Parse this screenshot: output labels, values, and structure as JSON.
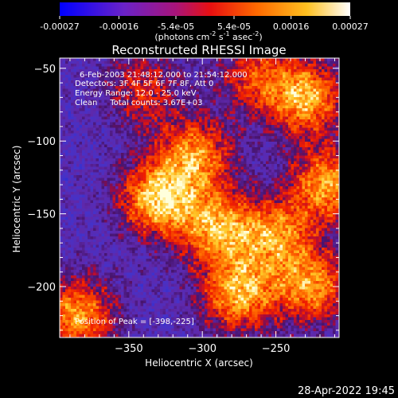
{
  "colorbar": {
    "tick_labels": [
      "-0.00027",
      "-0.00016",
      "-5.4e-05",
      "5.4e-05",
      "0.00016",
      "0.00027"
    ],
    "tick_values": [
      -0.00027,
      -0.00016,
      -5.4e-05,
      5.4e-05,
      0.00016,
      0.00027
    ],
    "range": [
      -0.00027,
      0.00027
    ],
    "units_main": "(photons cm",
    "units_exp1": "-2",
    "units_mid": " s",
    "units_exp2": "-1",
    "units_end": " asec",
    "units_exp3": "-2",
    "units_close": ")",
    "colors": [
      "#0000ff",
      "#7a1fb8",
      "#c0105a",
      "#ff3000",
      "#ff9a00",
      "#ffe060",
      "#ffffff"
    ]
  },
  "chart_data": {
    "type": "heatmap",
    "title": "Reconstructed RHESSI Image",
    "xlabel": "Heliocentric X (arcsec)",
    "ylabel": "Heliocentric Y (arcsec)",
    "xlim": [
      -397,
      -207
    ],
    "ylim": [
      -235,
      -43
    ],
    "xticks": [
      -350,
      -300,
      -250
    ],
    "xtick_labels": [
      "−350",
      "−300",
      "−250"
    ],
    "yticks": [
      -200,
      -150,
      -100,
      -50
    ],
    "ytick_labels": [
      "−200",
      "−150",
      "−100",
      "−50"
    ],
    "annotations": {
      "time": "6-Feb-2003 21:48:12.000 to 21:54:12.000",
      "detectors": "Detectors: 3F 4F 5F 6F 7F 8F, Att 0",
      "energy": "Energy Range: 12.0 - 25.0 keV",
      "clean": "Clean     Total counts: 3.67E+03",
      "peak": "Position of Peak = [-398,-225]"
    },
    "peak_position": [
      -398,
      -225
    ],
    "hot_regions": [
      {
        "x": -330,
        "y": -140,
        "intensity": 1.0
      },
      {
        "x": -305,
        "y": -110,
        "intensity": 0.8
      },
      {
        "x": -290,
        "y": -160,
        "intensity": 0.85
      },
      {
        "x": -230,
        "y": -70,
        "intensity": 0.9
      },
      {
        "x": -215,
        "y": -130,
        "intensity": 0.85
      },
      {
        "x": -225,
        "y": -200,
        "intensity": 0.8
      },
      {
        "x": -250,
        "y": -165,
        "intensity": 0.75
      },
      {
        "x": -385,
        "y": -220,
        "intensity": 0.85
      },
      {
        "x": -275,
        "y": -205,
        "intensity": 0.9
      },
      {
        "x": -340,
        "y": -65,
        "intensity": 0.5
      },
      {
        "x": -265,
        "y": -55,
        "intensity": 0.55
      }
    ]
  },
  "footer": {
    "timestamp": "28-Apr-2022 19:45"
  }
}
